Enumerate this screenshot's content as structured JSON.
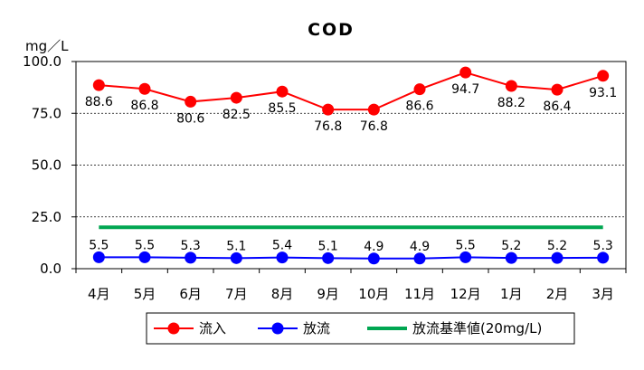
{
  "chart_data": {
    "type": "line",
    "title": "COD",
    "ylabel": "mg／L",
    "ylim": [
      0,
      100
    ],
    "yticks": [
      "0.0",
      "25.0",
      "50.0",
      "75.0",
      "100.0"
    ],
    "categories": [
      "4月",
      "5月",
      "6月",
      "7月",
      "8月",
      "9月",
      "10月",
      "11月",
      "12月",
      "1月",
      "2月",
      "3月"
    ],
    "grid": "horizontal dashed",
    "legend_position": "bottom",
    "series": [
      {
        "name": "流入",
        "color": "#ff0000",
        "values": [
          88.6,
          86.8,
          80.6,
          82.5,
          85.5,
          76.8,
          76.8,
          86.6,
          94.7,
          88.2,
          86.4,
          93.1
        ],
        "labels": [
          "88.6",
          "86.8",
          "80.6",
          "82.5",
          "85.5",
          "76.8",
          "76.8",
          "86.6",
          "94.7",
          "88.2",
          "86.4",
          "93.1"
        ]
      },
      {
        "name": "放流",
        "color": "#0000ff",
        "values": [
          5.5,
          5.5,
          5.3,
          5.1,
          5.4,
          5.1,
          4.9,
          4.9,
          5.5,
          5.2,
          5.2,
          5.3
        ],
        "labels": [
          "5.5",
          "5.5",
          "5.3",
          "5.1",
          "5.4",
          "5.1",
          "4.9",
          "4.9",
          "5.5",
          "5.2",
          "5.2",
          "5.3"
        ]
      },
      {
        "name": "放流基準値(20mg/L)",
        "color": "#00a651",
        "values": [
          20,
          20,
          20,
          20,
          20,
          20,
          20,
          20,
          20,
          20,
          20,
          20
        ]
      }
    ]
  }
}
